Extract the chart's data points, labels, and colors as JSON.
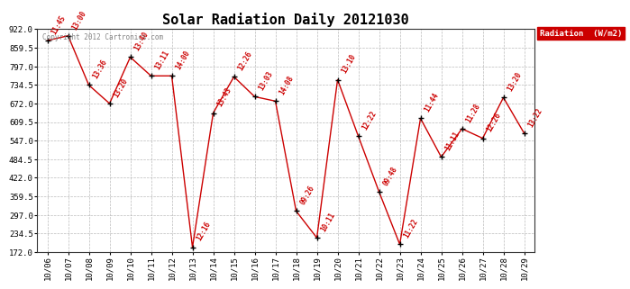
{
  "title": "Solar Radiation Daily 20121030",
  "copyright_text": "Copyright 2012 Cartronics.com",
  "legend_label": "Radiation  (W/m2)",
  "dates": [
    "10/06",
    "10/07",
    "10/08",
    "10/09",
    "10/10",
    "10/11",
    "10/12",
    "10/13",
    "10/14",
    "10/15",
    "10/16",
    "10/17",
    "10/18",
    "10/19",
    "10/20",
    "10/21",
    "10/22",
    "10/23",
    "10/24",
    "10/25",
    "10/26",
    "10/27",
    "10/28",
    "10/29"
  ],
  "values": [
    884,
    900,
    734,
    672,
    828,
    765,
    765,
    188,
    640,
    762,
    695,
    680,
    310,
    220,
    752,
    562,
    375,
    198,
    622,
    492,
    587,
    555,
    692,
    572
  ],
  "time_labels": [
    "11:45",
    "13:00",
    "13:36",
    "13:20",
    "13:40",
    "13:11",
    "14:00",
    "12:16",
    "13:43",
    "12:26",
    "13:03",
    "14:08",
    "09:26",
    "10:11",
    "13:10",
    "12:22",
    "09:48",
    "11:22",
    "11:44",
    "11:11",
    "11:28",
    "12:26",
    "13:20",
    "13:22"
  ],
  "ylim_min": 172.0,
  "ylim_max": 922.0,
  "yticks": [
    172.0,
    234.5,
    297.0,
    359.5,
    422.0,
    484.5,
    547.0,
    609.5,
    672.0,
    734.5,
    797.0,
    859.5,
    922.0
  ],
  "line_color": "#cc0000",
  "marker_color": "#000000",
  "label_color": "#cc0000",
  "bg_color": "#ffffff",
  "grid_color": "#aaaaaa",
  "title_color": "#000000",
  "legend_bg": "#cc0000",
  "legend_text_color": "#ffffff"
}
